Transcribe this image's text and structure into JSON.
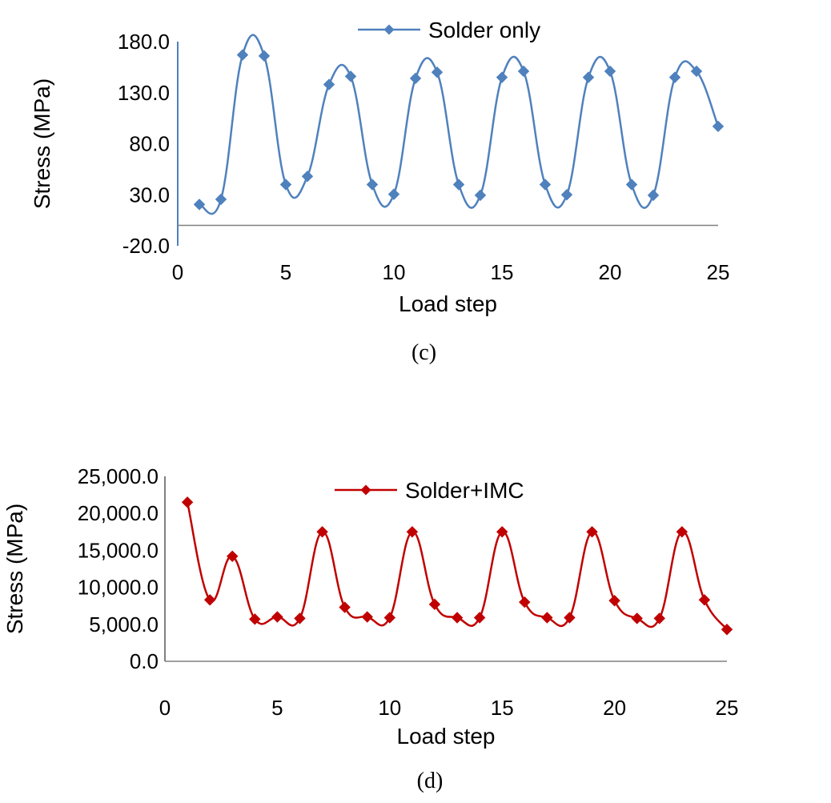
{
  "chart_data": [
    {
      "type": "line",
      "title": "",
      "xlabel": "Load step",
      "ylabel": "Stress (MPa)",
      "caption": "(c)",
      "xlim": [
        0,
        25
      ],
      "ylim": [
        -20,
        180
      ],
      "x_ticks": [
        0,
        5,
        10,
        15,
        20,
        25
      ],
      "y_ticks": [
        -20,
        30,
        80,
        130,
        180
      ],
      "y_tick_labels": [
        "-20.0",
        "30.0",
        "80.0",
        "130.0",
        "180.0"
      ],
      "legend_position": "top",
      "series": [
        {
          "name": "Solder only",
          "color": "#4f81bd",
          "marker": "diamond",
          "x": [
            1,
            2,
            3,
            4,
            5,
            6,
            7,
            8,
            9,
            10,
            11,
            12,
            13,
            14,
            15,
            16,
            17,
            18,
            19,
            20,
            21,
            22,
            23,
            24,
            25
          ],
          "values": [
            20.5,
            25.5,
            167,
            166,
            40,
            48,
            138,
            146,
            40,
            30.5,
            144,
            150,
            40,
            29.5,
            145,
            151,
            40,
            30,
            145,
            151,
            40,
            29.5,
            145,
            151,
            97
          ]
        }
      ]
    },
    {
      "type": "line",
      "title": "",
      "xlabel": "Load step",
      "ylabel": "Stress (MPa)",
      "caption": "(d)",
      "xlim": [
        0,
        25
      ],
      "ylim": [
        0,
        25000
      ],
      "x_ticks": [
        0,
        5,
        10,
        15,
        20,
        25
      ],
      "y_ticks": [
        0,
        5000,
        10000,
        15000,
        20000,
        25000
      ],
      "y_tick_labels": [
        "0.0",
        "5,000.0",
        "10,000.0",
        "15,000.0",
        "20,000.0",
        "25,000.0"
      ],
      "legend_position": "top",
      "series": [
        {
          "name": "Solder+IMC",
          "color": "#c00000",
          "marker": "diamond",
          "x": [
            1,
            2,
            3,
            4,
            5,
            6,
            7,
            8,
            9,
            10,
            11,
            12,
            13,
            14,
            15,
            16,
            17,
            18,
            19,
            20,
            21,
            22,
            23,
            24,
            25
          ],
          "values": [
            21500,
            8300,
            14200,
            5700,
            6000,
            5800,
            17500,
            7300,
            6000,
            5900,
            17500,
            7700,
            5900,
            5900,
            17500,
            8000,
            5900,
            5900,
            17500,
            8200,
            5800,
            5800,
            17500,
            8300,
            4300
          ]
        }
      ]
    }
  ]
}
